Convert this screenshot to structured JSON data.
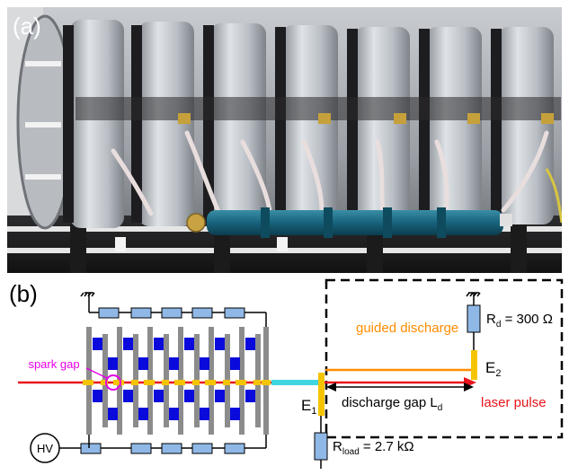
{
  "panel_a": {
    "label": "(a)"
  },
  "panel_b": {
    "label": "(b)",
    "spark_gap_label": "spark gap",
    "hv_label": "HV",
    "guided_discharge_label": "guided discharge",
    "rd_prefix": "R",
    "rd_sub": "d",
    "rd_value": " = 300 Ω",
    "e2_prefix": "E",
    "e2_sub": "2",
    "e1_prefix": "E",
    "e1_sub": "1",
    "gap_text": "discharge gap L",
    "gap_sub": "d",
    "laser_label": "laser pulse",
    "rload_prefix": "R",
    "rload_sub": "load",
    "rload_value": " = 2.7 kΩ"
  },
  "colors": {
    "laser": "#e8141b",
    "spark_gap": "#e600e6",
    "discharge": "#ff8c00",
    "electrode": "#f5c400",
    "capacitor": "#0a0adc",
    "resistor": "#8fb8e6",
    "cyan_segment": "#3fd6e0"
  }
}
